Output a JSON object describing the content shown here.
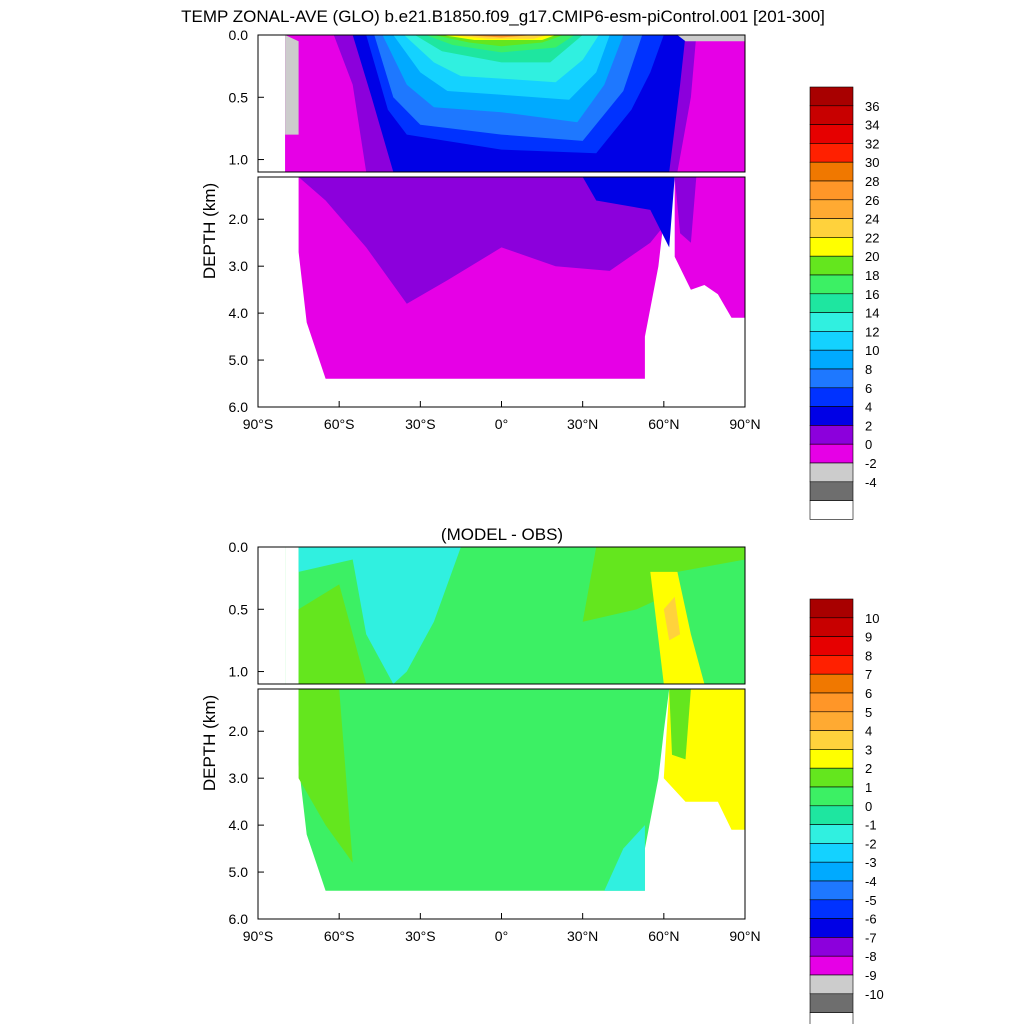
{
  "chart_data": [
    {
      "type": "heatmap",
      "title": "TEMP ZONAL-AVE (GLO) b.e21.B1850.f09_g17.CMIP6-esm-piControl.001 [201-300]",
      "xlabel": "",
      "ylabel": "DEPTH (km)",
      "x_tick_labels": [
        "90°S",
        "60°S",
        "30°S",
        "0°",
        "30°N",
        "60°N",
        "90°N"
      ],
      "upper_y_tick_labels": [
        "0.0",
        "0.5",
        "1.0"
      ],
      "lower_y_tick_labels": [
        "2.0",
        "3.0",
        "4.0",
        "5.0",
        "6.0"
      ],
      "xlim": [
        -90,
        90
      ],
      "upper_ylim": [
        0,
        1.1
      ],
      "lower_ylim": [
        1.1,
        6.0
      ],
      "colorbar_labels": [
        "36",
        "34",
        "32",
        "30",
        "28",
        "26",
        "24",
        "22",
        "20",
        "18",
        "16",
        "14",
        "12",
        "10",
        "8",
        "6",
        "4",
        "2",
        "0",
        "-2",
        "-4"
      ],
      "colorbar_colors": [
        "#a80000",
        "#c80000",
        "#e60000",
        "#ff2000",
        "#f07800",
        "#ff9628",
        "#ffaa32",
        "#ffd23c",
        "#ffff00",
        "#64e61e",
        "#3cf064",
        "#1ee6a0",
        "#30f0e0",
        "#14d2ff",
        "#00aaff",
        "#1e78ff",
        "#0032ff",
        "#0000e6",
        "#8c00dc",
        "#e600e6",
        "#cccccc",
        "#6e6e6e",
        "#ffffff"
      ]
    },
    {
      "type": "heatmap",
      "title": "(MODEL - OBS)",
      "xlabel": "",
      "ylabel": "DEPTH (km)",
      "x_tick_labels": [
        "90°S",
        "60°S",
        "30°S",
        "0°",
        "30°N",
        "60°N",
        "90°N"
      ],
      "upper_y_tick_labels": [
        "0.0",
        "0.5",
        "1.0"
      ],
      "lower_y_tick_labels": [
        "2.0",
        "3.0",
        "4.0",
        "5.0",
        "6.0"
      ],
      "xlim": [
        -90,
        90
      ],
      "upper_ylim": [
        0,
        1.1
      ],
      "lower_ylim": [
        1.1,
        6.0
      ],
      "colorbar_labels": [
        "10",
        "9",
        "8",
        "7",
        "6",
        "5",
        "4",
        "3",
        "2",
        "1",
        "0",
        "-1",
        "-2",
        "-3",
        "-4",
        "-5",
        "-6",
        "-7",
        "-8",
        "-9",
        "-10"
      ],
      "colorbar_colors": [
        "#a80000",
        "#c80000",
        "#e60000",
        "#ff2000",
        "#f07800",
        "#ff9628",
        "#ffaa32",
        "#ffd23c",
        "#ffff00",
        "#64e61e",
        "#3cf064",
        "#1ee6a0",
        "#30f0e0",
        "#14d2ff",
        "#00aaff",
        "#1e78ff",
        "#0032ff",
        "#0000e6",
        "#8c00dc",
        "#e600e6",
        "#cccccc",
        "#6e6e6e",
        "#ffffff"
      ]
    }
  ]
}
